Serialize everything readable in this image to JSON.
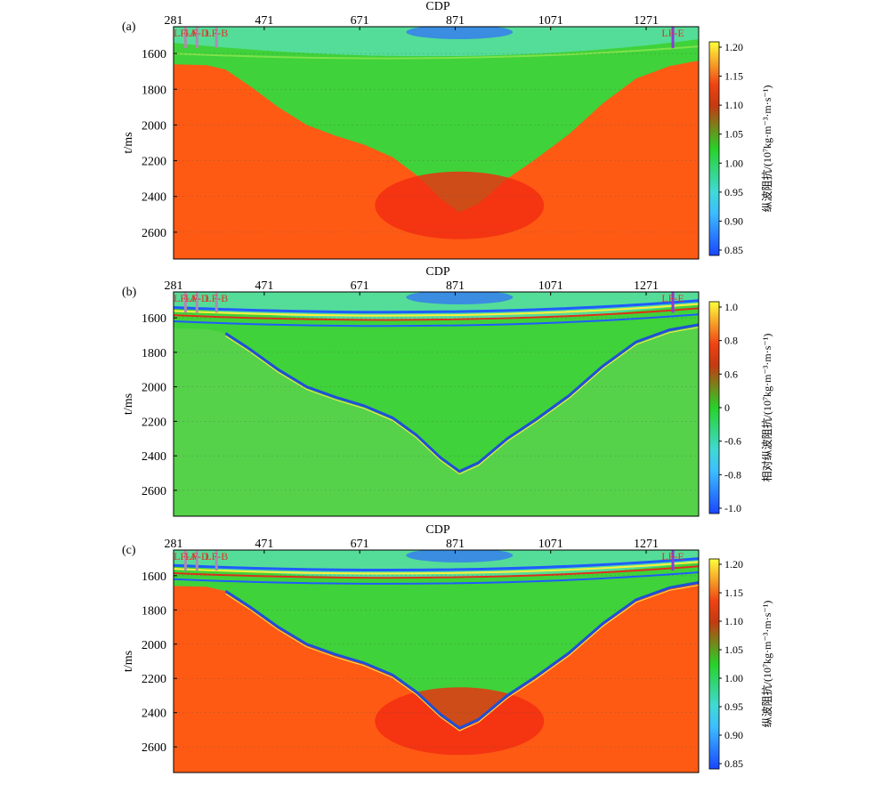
{
  "chart_data": [
    {
      "type": "heatmap",
      "panel_label": "(a)",
      "xlabel": "CDP",
      "x_ticks": [
        281,
        471,
        671,
        871,
        1071,
        1271
      ],
      "y_ticks": [
        1600,
        1800,
        2000,
        2200,
        2400,
        2600
      ],
      "xlim": [
        281,
        1381
      ],
      "ylim": [
        2750,
        1450
      ],
      "ylabel": "t/ms",
      "colorbar": {
        "label": "纵波阻抗/(10⁷kg·m⁻³·m·s⁻¹)",
        "ticks": [
          "1.20",
          "1.15",
          "1.10",
          "1.05",
          "1.00",
          "0.95",
          "0.90",
          "0.85"
        ],
        "range": [
          0.83,
          1.21
        ]
      },
      "wells": [
        {
          "name": "LF-A",
          "cdp": 306
        },
        {
          "name": "LF-D",
          "cdp": 330
        },
        {
          "name": "LF-B",
          "cdp": 371
        },
        {
          "name": "LF-E",
          "cdp": 1327
        }
      ]
    },
    {
      "type": "heatmap",
      "panel_label": "(b)",
      "xlabel": "CDP",
      "x_ticks": [
        281,
        471,
        671,
        871,
        1071,
        1271
      ],
      "y_ticks": [
        1600,
        1800,
        2000,
        2200,
        2400,
        2600
      ],
      "xlim": [
        281,
        1381
      ],
      "ylim": [
        2750,
        1450
      ],
      "ylabel": "t/ms",
      "colorbar": {
        "label": "相对纵波阻抗/(10⁷kg·m⁻³·m·s⁻¹)",
        "ticks": [
          "1.0",
          "0.8",
          "0.6",
          "0",
          "-0.6",
          "-0.8",
          "-1.0"
        ],
        "range": [
          -1.1,
          1.1
        ]
      },
      "wells": [
        {
          "name": "LF-A",
          "cdp": 306
        },
        {
          "name": "LF-D",
          "cdp": 330
        },
        {
          "name": "LF-B",
          "cdp": 371
        },
        {
          "name": "LF-E",
          "cdp": 1327
        }
      ]
    },
    {
      "type": "heatmap",
      "panel_label": "(c)",
      "xlabel": "CDP",
      "x_ticks": [
        281,
        471,
        671,
        871,
        1071,
        1271
      ],
      "y_ticks": [
        1600,
        1800,
        2000,
        2200,
        2400,
        2600
      ],
      "xlim": [
        281,
        1381
      ],
      "ylim": [
        2750,
        1450
      ],
      "ylabel": "t/ms",
      "colorbar": {
        "label": "纵波阻抗/(10⁷kg·m⁻³·m·s⁻¹)",
        "ticks": [
          "1.20",
          "1.15",
          "1.10",
          "1.05",
          "1.00",
          "0.95",
          "0.90",
          "0.85"
        ],
        "range": [
          0.83,
          1.21
        ]
      },
      "wells": [
        {
          "name": "LF-A",
          "cdp": 306
        },
        {
          "name": "LF-D",
          "cdp": 330
        },
        {
          "name": "LF-B",
          "cdp": 371
        },
        {
          "name": "LF-E",
          "cdp": 1327
        }
      ]
    }
  ]
}
